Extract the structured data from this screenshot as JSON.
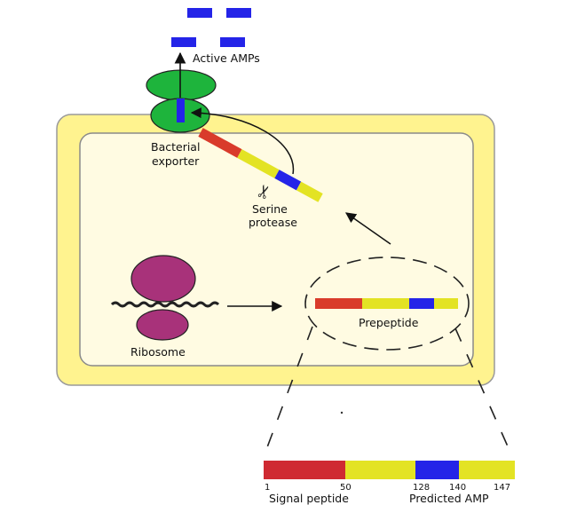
{
  "labels": {
    "active_amps": "Active AMPs",
    "bacterial_exporter_line1": "Bacterial",
    "bacterial_exporter_line2": "exporter",
    "serine_protease_line1": "Serine",
    "serine_protease_line2": "protease",
    "ribosome": "Ribosome",
    "prepeptide": "Prepeptide",
    "signal_peptide": "Signal peptide",
    "predicted_amp": "Predicted AMP"
  },
  "positions": {
    "p1": "1",
    "p50": "50",
    "p128": "128",
    "p140": "140",
    "p147": "147"
  },
  "colors": {
    "cell_outer": "#fff38f",
    "cell_inner": "#fffbe2",
    "exporter": "#1eb43c",
    "ribosome": "#a8327a",
    "signal": "#d93b2b",
    "body": "#e3e324",
    "amp": "#2424e8",
    "gene_signal": "#cf2a32"
  },
  "icons": {
    "scissors": "scissors-icon"
  },
  "symbols": {
    "scissors": "✂"
  }
}
